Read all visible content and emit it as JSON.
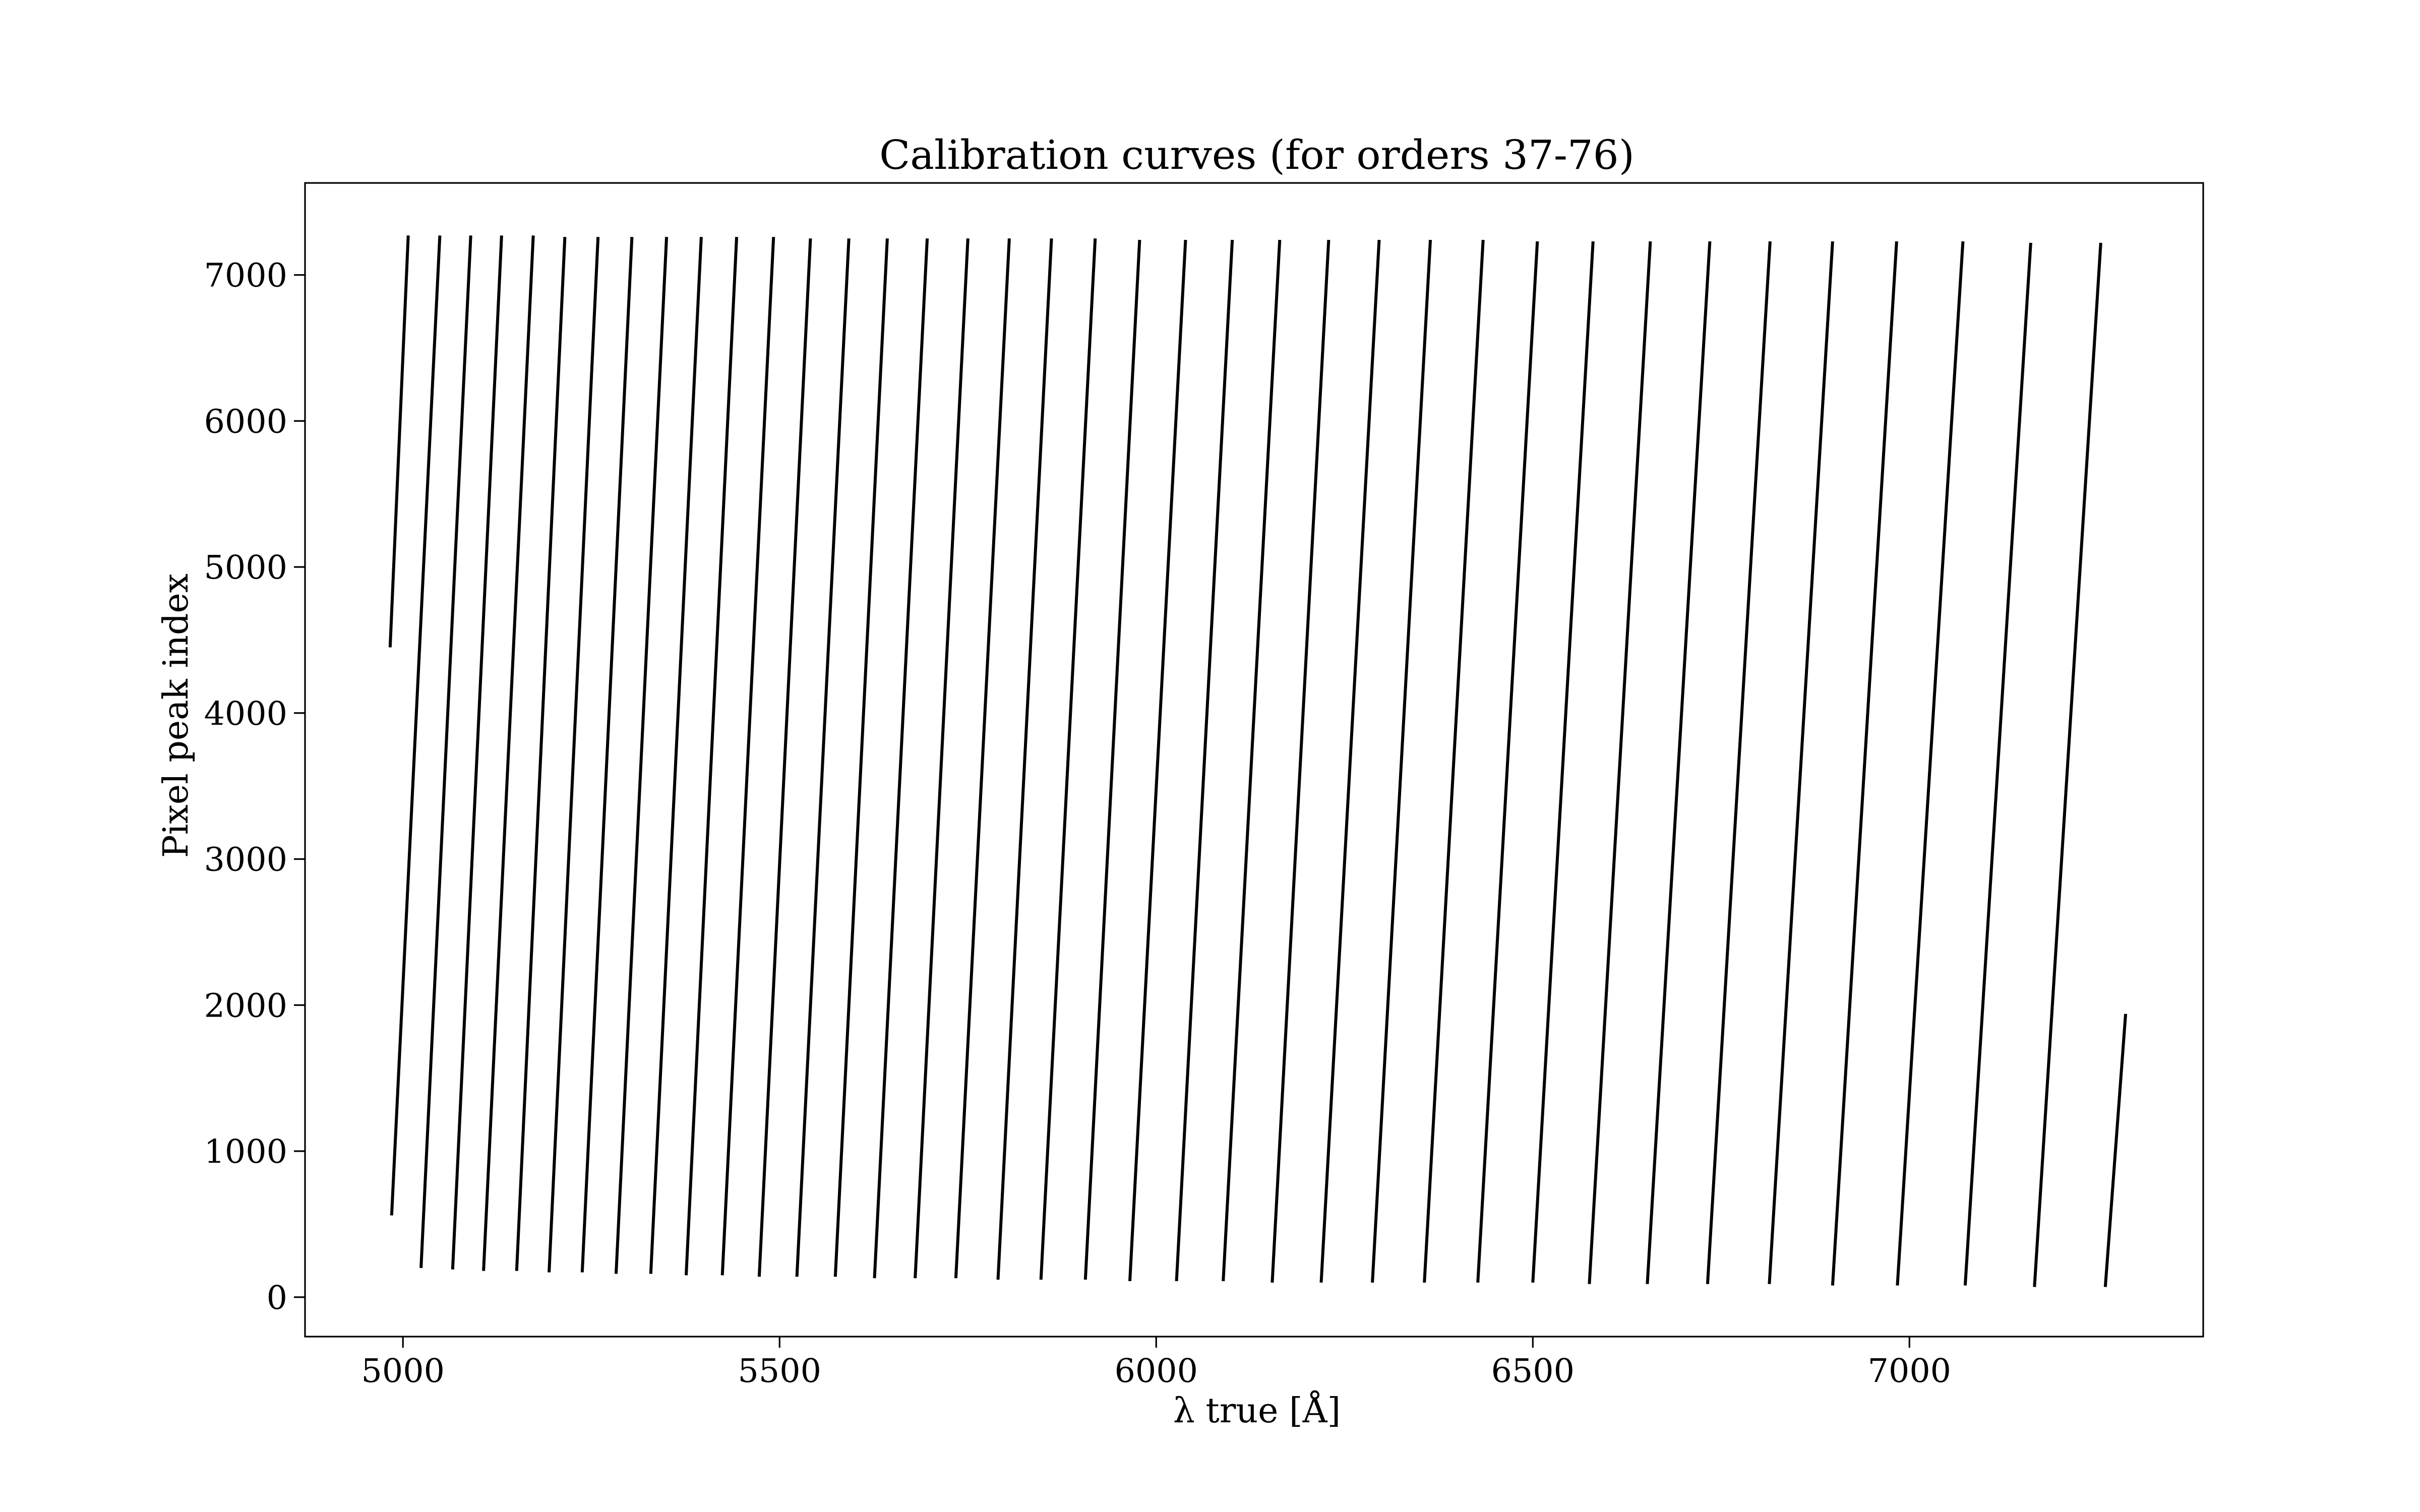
{
  "chart_data": {
    "type": "line",
    "title": "Calibration curves (for orders 37-76)",
    "xlabel": "λ true [Å]",
    "ylabel": "Pixel peak index",
    "xlim": [
      4870,
      7390
    ],
    "ylim": [
      -270,
      7630
    ],
    "xticks": [
      5000,
      5500,
      6000,
      6500,
      7000
    ],
    "yticks": [
      0,
      1000,
      2000,
      3000,
      4000,
      5000,
      6000,
      7000
    ],
    "grid": false,
    "legend": false,
    "line_color": "#000000",
    "series": [
      {
        "x": [
          4983,
          5007
        ],
        "y": [
          4450,
          7270
        ]
      },
      {
        "x": [
          4985,
          5049
        ],
        "y": [
          560,
          7270
        ]
      },
      {
        "x": [
          5024,
          5090
        ],
        "y": [
          200,
          7270
        ]
      },
      {
        "x": [
          5066,
          5131
        ],
        "y": [
          190,
          7270
        ]
      },
      {
        "x": [
          5107,
          5173
        ],
        "y": [
          180,
          7270
        ]
      },
      {
        "x": [
          5151,
          5215
        ],
        "y": [
          180,
          7260
        ]
      },
      {
        "x": [
          5194,
          5259
        ],
        "y": [
          170,
          7260
        ]
      },
      {
        "x": [
          5238,
          5304
        ],
        "y": [
          170,
          7260
        ]
      },
      {
        "x": [
          5283,
          5350
        ],
        "y": [
          160,
          7260
        ]
      },
      {
        "x": [
          5329,
          5396
        ],
        "y": [
          160,
          7260
        ]
      },
      {
        "x": [
          5376,
          5443
        ],
        "y": [
          150,
          7260
        ]
      },
      {
        "x": [
          5424,
          5492
        ],
        "y": [
          150,
          7260
        ]
      },
      {
        "x": [
          5473,
          5541
        ],
        "y": [
          140,
          7250
        ]
      },
      {
        "x": [
          5523,
          5592
        ],
        "y": [
          140,
          7250
        ]
      },
      {
        "x": [
          5574,
          5643
        ],
        "y": [
          140,
          7250
        ]
      },
      {
        "x": [
          5626,
          5696
        ],
        "y": [
          130,
          7250
        ]
      },
      {
        "x": [
          5680,
          5750
        ],
        "y": [
          130,
          7250
        ]
      },
      {
        "x": [
          5734,
          5805
        ],
        "y": [
          130,
          7250
        ]
      },
      {
        "x": [
          5790,
          5861
        ],
        "y": [
          120,
          7250
        ]
      },
      {
        "x": [
          5847,
          5919
        ],
        "y": [
          120,
          7250
        ]
      },
      {
        "x": [
          5906,
          5978
        ],
        "y": [
          120,
          7240
        ]
      },
      {
        "x": [
          5965,
          6039
        ],
        "y": [
          110,
          7240
        ]
      },
      {
        "x": [
          6027,
          6101
        ],
        "y": [
          110,
          7240
        ]
      },
      {
        "x": [
          6089,
          6164
        ],
        "y": [
          110,
          7240
        ]
      },
      {
        "x": [
          6154,
          6229
        ],
        "y": [
          100,
          7240
        ]
      },
      {
        "x": [
          6219,
          6296
        ],
        "y": [
          100,
          7240
        ]
      },
      {
        "x": [
          6287,
          6364
        ],
        "y": [
          100,
          7240
        ]
      },
      {
        "x": [
          6356,
          6434
        ],
        "y": [
          100,
          7240
        ]
      },
      {
        "x": [
          6427,
          6506
        ],
        "y": [
          100,
          7230
        ]
      },
      {
        "x": [
          6500,
          6580
        ],
        "y": [
          100,
          7230
        ]
      },
      {
        "x": [
          6575,
          6656
        ],
        "y": [
          90,
          7230
        ]
      },
      {
        "x": [
          6652,
          6735
        ],
        "y": [
          90,
          7230
        ]
      },
      {
        "x": [
          6732,
          6815
        ],
        "y": [
          90,
          7230
        ]
      },
      {
        "x": [
          6814,
          6898
        ],
        "y": [
          90,
          7230
        ]
      },
      {
        "x": [
          6898,
          6983
        ],
        "y": [
          80,
          7230
        ]
      },
      {
        "x": [
          6984,
          7071
        ],
        "y": [
          80,
          7230
        ]
      },
      {
        "x": [
          7074,
          7161
        ],
        "y": [
          80,
          7220
        ]
      },
      {
        "x": [
          7166,
          7254
        ],
        "y": [
          70,
          7220
        ]
      },
      {
        "x": [
          7260,
          7287
        ],
        "y": [
          70,
          1940
        ]
      }
    ]
  }
}
